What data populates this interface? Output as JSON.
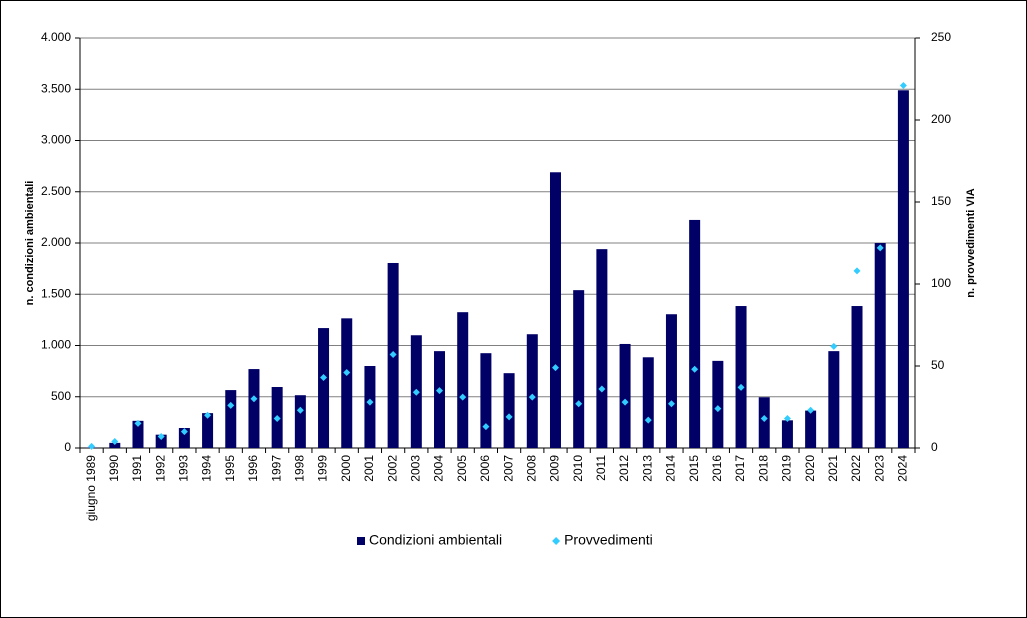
{
  "chart_data": {
    "type": "bar",
    "y_label": "n. condizioni ambientali",
    "y2_label": "n. provvedimenti VIA",
    "categories": [
      "giugno 1989",
      "1990",
      "1991",
      "1992",
      "1993",
      "1994",
      "1995",
      "1996",
      "1997",
      "1998",
      "1999",
      "2000",
      "2001",
      "2002",
      "2003",
      "2004",
      "2005",
      "2006",
      "2007",
      "2008",
      "2009",
      "2010",
      "2011",
      "2012",
      "2013",
      "2014",
      "2015",
      "2016",
      "2017",
      "2018",
      "2019",
      "2020",
      "2021",
      "2022",
      "2023",
      "2024"
    ],
    "series": [
      {
        "name": "Condizioni ambientali",
        "type": "bar",
        "color": "#000066",
        "values": [
          5,
          50,
          265,
          130,
          195,
          340,
          565,
          770,
          595,
          515,
          1170,
          1265,
          800,
          1805,
          1100,
          945,
          1325,
          925,
          730,
          1110,
          2690,
          1540,
          1940,
          1015,
          885,
          1305,
          2225,
          850,
          1385,
          495,
          270,
          365,
          945,
          1385,
          2000,
          3490
        ]
      },
      {
        "name": "Provvedimenti",
        "type": "scatter",
        "axis": "y2",
        "color": "#33ccff",
        "values": [
          1,
          4,
          15,
          7,
          10,
          20,
          26,
          30,
          18,
          23,
          43,
          46,
          28,
          57,
          34,
          35,
          31,
          13,
          19,
          31,
          49,
          27,
          36,
          28,
          17,
          27,
          48,
          24,
          37,
          18,
          18,
          23,
          62,
          108,
          122,
          221
        ]
      }
    ],
    "ylim": [
      0,
      4000
    ],
    "yticks": [
      0,
      500,
      {
        "value": 1000,
        "label": "1.000"
      },
      {
        "value": 1500,
        "label": "1.500"
      },
      {
        "value": 2000,
        "label": "2.000"
      },
      {
        "value": 2500,
        "label": "2.500"
      },
      {
        "value": 3000,
        "label": "3.000"
      },
      {
        "value": 3500,
        "label": "3.500"
      },
      {
        "value": 4000,
        "label": "4.000"
      }
    ],
    "y2lim": [
      0,
      250
    ],
    "y2ticks": [
      0,
      50,
      100,
      150,
      200,
      250
    ],
    "grid": true,
    "legend": "bottom"
  }
}
